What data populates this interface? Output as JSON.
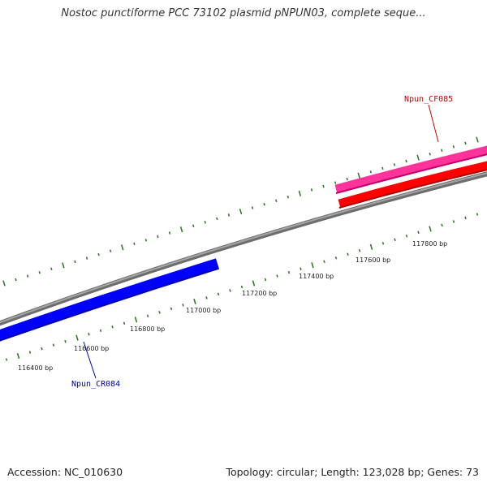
{
  "title": "Nostoc punctiforme PCC 73102 plasmid pNPUN03, complete seque...",
  "footer": {
    "accession": "Accession: NC_010630",
    "stats": "Topology: circular; Length: 123,028 bp; Genes: 73"
  },
  "colors": {
    "backbone": "#888888",
    "tick": "#2e7d22",
    "gene_forward_primary": "#ff3399",
    "gene_forward_secondary": "#ff0000",
    "gene_reverse": "#0000ff",
    "label_forward": "#cc0000",
    "label_reverse": "#0000aa"
  },
  "scale_labels": [
    "116400 bp",
    "116600 bp",
    "116800 bp",
    "117000 bp",
    "117200 bp",
    "117400 bp",
    "117600 bp",
    "117800 bp"
  ],
  "genes": [
    {
      "label": "Npun_CF085",
      "strand": "forward"
    },
    {
      "label": "Npun_CR084",
      "strand": "reverse"
    }
  ]
}
